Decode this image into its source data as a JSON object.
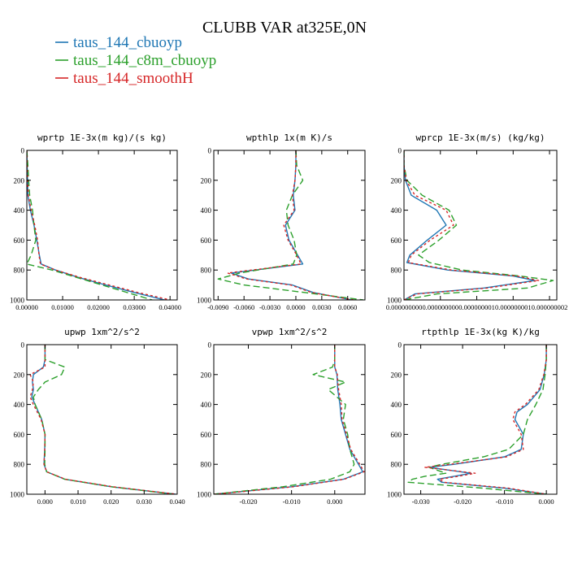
{
  "title": "CLUBB VAR at325E,0N",
  "legend": [
    {
      "label": "taus_144_cbuoyp",
      "color": "#1f77b4",
      "dash": "solid"
    },
    {
      "label": "taus_144_c8m_cbuoyp",
      "color": "#2ca02c",
      "dash": "dashed"
    },
    {
      "label": "taus_144_smoothH",
      "color": "#d62728",
      "dash": "dotted"
    }
  ],
  "chart_data": [
    {
      "type": "line",
      "title": "wprtp  1E-3x(m kg)/(s kg)",
      "xlim": [
        0.0,
        0.042
      ],
      "ylim": [
        0,
        1000
      ],
      "xticks": [
        0.0,
        0.01,
        0.02,
        0.03,
        0.04
      ],
      "xtick_labels": [
        "0.00000",
        "0.01000",
        "0.02000",
        "0.03000",
        "0.04000"
      ],
      "yticks": [
        0,
        200,
        400,
        600,
        800,
        1000
      ],
      "ytick_labels": [
        "0",
        "200",
        "400",
        "600",
        "800",
        "1000"
      ],
      "y": [
        0,
        100,
        200,
        300,
        400,
        500,
        600,
        700,
        760,
        800,
        850,
        900,
        950,
        1000
      ],
      "series": [
        {
          "name": "taus_144_cbuoyp",
          "x": [
            0.0,
            0.0001,
            0.0002,
            0.0003,
            0.001,
            0.002,
            0.0028,
            0.0035,
            0.004,
            0.008,
            0.0145,
            0.022,
            0.03,
            0.0385
          ]
        },
        {
          "name": "taus_144_c8m_cbuoyp",
          "x": [
            0.0,
            0.0003,
            0.0005,
            0.0008,
            0.0016,
            0.002,
            0.0025,
            0.0012,
            0.0,
            0.007,
            0.014,
            0.021,
            0.028,
            0.035
          ]
        },
        {
          "name": "taus_144_smoothH",
          "x": [
            0.0,
            0.0001,
            0.0002,
            0.0004,
            0.0012,
            0.0022,
            0.003,
            0.0034,
            0.0038,
            0.008,
            0.015,
            0.023,
            0.031,
            0.04
          ]
        }
      ]
    },
    {
      "type": "line",
      "title": "wpthlp  1x(m K)/s",
      "xlim": [
        -0.0095,
        0.008
      ],
      "ylim": [
        0,
        1000
      ],
      "xticks": [
        -0.009,
        -0.006,
        -0.003,
        0.0,
        0.003,
        0.006
      ],
      "xtick_labels": [
        "-0.0090",
        "-0.0060",
        "-0.0030",
        "0.0000",
        "0.0030",
        "0.0060"
      ],
      "yticks": [
        0,
        200,
        400,
        600,
        800,
        1000
      ],
      "ytick_labels": [
        "0",
        "200",
        "400",
        "600",
        "800",
        "1000"
      ],
      "y": [
        0,
        100,
        200,
        300,
        400,
        500,
        600,
        700,
        760,
        820,
        860,
        900,
        950,
        1000
      ],
      "series": [
        {
          "name": "taus_144_cbuoyp",
          "x": [
            0.0,
            0.0,
            -0.0001,
            -0.0003,
            -0.0001,
            -0.0012,
            -0.0008,
            0.0002,
            0.0008,
            -0.0075,
            -0.0055,
            -0.0004,
            0.002,
            0.0065
          ]
        },
        {
          "name": "taus_144_c8m_cbuoyp",
          "x": [
            0.0,
            0.0001,
            0.0008,
            -0.0004,
            -0.0011,
            -0.0009,
            -0.0002,
            0.0001,
            -0.0003,
            -0.0065,
            -0.009,
            -0.006,
            0.001,
            0.0078
          ]
        },
        {
          "name": "taus_144_smoothH",
          "x": [
            0.0,
            0.0,
            -0.0001,
            -0.0004,
            -0.0002,
            -0.0014,
            -0.0009,
            0.0001,
            0.0006,
            -0.0079,
            -0.0057,
            -0.0006,
            0.0018,
            0.0067
          ]
        }
      ]
    },
    {
      "type": "line",
      "title": "wprcp  1E-3x(m/s) (kg/kg)",
      "xlim": [
        0.0,
        2.1e-09
      ],
      "ylim": [
        0,
        1000
      ],
      "xticks": [
        0.0,
        5e-10,
        1e-09,
        1.5e-09,
        2e-09
      ],
      "xtick_labels": [
        "0.000000000",
        "0.000000000",
        "0.000000001",
        "0.000000001",
        "0.000000002"
      ],
      "yticks": [
        0,
        200,
        400,
        600,
        800,
        1000
      ],
      "ytick_labels": [
        "0",
        "200",
        "400",
        "600",
        "800",
        "1000"
      ],
      "y": [
        0,
        100,
        200,
        300,
        400,
        500,
        600,
        700,
        750,
        800,
        840,
        870,
        920,
        960,
        1000
      ],
      "series": [
        {
          "name": "taus_144_cbuoyp",
          "x": [
            0.0,
            0.0,
            2e-11,
            1e-10,
            4.5e-10,
            5.8e-10,
            3.2e-10,
            8e-11,
            4e-11,
            6e-10,
            1.5e-09,
            1.8e-09,
            1.1e-09,
            1.5e-10,
            0.0
          ]
        },
        {
          "name": "taus_144_c8m_cbuoyp",
          "x": [
            0.0,
            0.0,
            4e-11,
            2.5e-10,
            6.2e-10,
            7.2e-10,
            4.8e-10,
            2e-10,
            3.5e-10,
            8e-10,
            1.6e-09,
            2.05e-09,
            1.7e-09,
            4.5e-10,
            0.0
          ]
        },
        {
          "name": "taus_144_smoothH",
          "x": [
            0.0,
            0.0,
            3e-11,
            1.5e-10,
            5.8e-10,
            6.8e-10,
            3.6e-10,
            1e-10,
            6e-11,
            6.5e-10,
            1.55e-09,
            1.85e-09,
            1.15e-09,
            1.8e-10,
            0.0
          ]
        }
      ]
    },
    {
      "type": "line",
      "title": "upwp  1xm^2/s^2",
      "xlim": [
        -0.0055,
        0.04
      ],
      "ylim": [
        0,
        1000
      ],
      "xticks": [
        0.0,
        0.01,
        0.02,
        0.03,
        0.04
      ],
      "xtick_labels": [
        "0.000",
        "0.010",
        "0.020",
        "0.030",
        "0.040"
      ],
      "yticks": [
        0,
        200,
        400,
        600,
        800,
        1000
      ],
      "ytick_labels": [
        "0",
        "200",
        "400",
        "600",
        "800",
        "1000"
      ],
      "y": [
        0,
        100,
        150,
        200,
        250,
        300,
        350,
        400,
        500,
        600,
        700,
        800,
        850,
        900,
        950,
        1000
      ],
      "series": [
        {
          "name": "taus_144_cbuoyp",
          "x": [
            0.0,
            0.0,
            -0.0005,
            -0.0035,
            -0.0038,
            -0.0035,
            -0.004,
            -0.003,
            -0.001,
            0.0,
            -0.0001,
            -0.0003,
            0.0005,
            0.006,
            0.02,
            0.0395
          ]
        },
        {
          "name": "taus_144_c8m_cbuoyp",
          "x": [
            0.0,
            0.0,
            0.006,
            0.005,
            0.0,
            -0.002,
            -0.0035,
            -0.003,
            -0.001,
            0.0,
            0.0,
            -0.0001,
            0.0005,
            0.006,
            0.02,
            0.039
          ]
        },
        {
          "name": "taus_144_smoothH",
          "x": [
            0.0,
            0.0,
            0.0,
            -0.0045,
            -0.0035,
            -0.0038,
            -0.0045,
            -0.0035,
            -0.0012,
            0.0,
            -0.0001,
            -0.0003,
            0.0005,
            0.0062,
            0.0205,
            0.0398
          ]
        }
      ]
    },
    {
      "type": "line",
      "title": "vpwp  1xm^2/s^2",
      "xlim": [
        -0.028,
        0.007
      ],
      "ylim": [
        0,
        1000
      ],
      "xticks": [
        -0.02,
        -0.01,
        0.0
      ],
      "xtick_labels": [
        "-0.020",
        "-0.010",
        "0.000"
      ],
      "yticks": [
        0,
        200,
        400,
        600,
        800,
        1000
      ],
      "ytick_labels": [
        "0",
        "200",
        "400",
        "600",
        "800",
        "1000"
      ],
      "y": [
        0,
        100,
        150,
        200,
        250,
        300,
        400,
        500,
        600,
        700,
        800,
        850,
        900,
        950,
        1000
      ],
      "series": [
        {
          "name": "taus_144_cbuoyp",
          "x": [
            0.0,
            0.0,
            0.0,
            0.0005,
            0.0006,
            0.0007,
            0.0012,
            0.0015,
            0.0025,
            0.0035,
            0.0055,
            0.0065,
            0.002,
            -0.01,
            -0.028
          ]
        },
        {
          "name": "taus_144_c8m_cbuoyp",
          "x": [
            0.0,
            0.0,
            -0.0005,
            -0.005,
            0.0025,
            -0.0015,
            0.0025,
            0.002,
            0.003,
            0.0035,
            0.0045,
            0.0035,
            -0.001,
            -0.012,
            -0.028
          ]
        },
        {
          "name": "taus_144_smoothH",
          "x": [
            0.0,
            0.0,
            0.0,
            0.0006,
            0.0007,
            0.0009,
            0.0015,
            0.0017,
            0.0027,
            0.0037,
            0.0058,
            0.0068,
            0.0022,
            -0.0095,
            -0.0278
          ]
        }
      ]
    },
    {
      "type": "line",
      "title": "rtpthlp  1E-3x(kg K)/kg",
      "xlim": [
        -0.034,
        0.0025
      ],
      "ylim": [
        0,
        1000
      ],
      "xticks": [
        -0.03,
        -0.02,
        -0.01,
        0.0
      ],
      "xtick_labels": [
        "-0.030",
        "-0.020",
        "-0.010",
        "0.000"
      ],
      "yticks": [
        0,
        200,
        400,
        600,
        800,
        1000
      ],
      "ytick_labels": [
        "0",
        "200",
        "400",
        "600",
        "800",
        "1000"
      ],
      "y": [
        0,
        100,
        200,
        300,
        400,
        450,
        500,
        600,
        700,
        750,
        800,
        820,
        860,
        880,
        900,
        920,
        960,
        1000
      ],
      "series": [
        {
          "name": "taus_144_cbuoyp",
          "x": [
            0.0,
            0.0,
            -0.0005,
            -0.0015,
            -0.0045,
            -0.007,
            -0.0075,
            -0.0055,
            -0.006,
            -0.01,
            -0.022,
            -0.028,
            -0.018,
            -0.022,
            -0.026,
            -0.025,
            -0.01,
            0.0
          ]
        },
        {
          "name": "taus_144_c8m_cbuoyp",
          "x": [
            0.0,
            0.0,
            -0.0003,
            -0.0008,
            -0.0025,
            -0.0035,
            -0.0045,
            -0.0055,
            -0.009,
            -0.015,
            -0.025,
            -0.028,
            -0.024,
            -0.029,
            -0.032,
            -0.033,
            -0.015,
            0.0
          ]
        },
        {
          "name": "taus_144_smoothH",
          "x": [
            0.0,
            0.0,
            -0.0006,
            -0.0018,
            -0.005,
            -0.0075,
            -0.008,
            -0.006,
            -0.0055,
            -0.0095,
            -0.023,
            -0.029,
            -0.017,
            -0.021,
            -0.0255,
            -0.0245,
            -0.009,
            0.0
          ]
        }
      ]
    }
  ]
}
